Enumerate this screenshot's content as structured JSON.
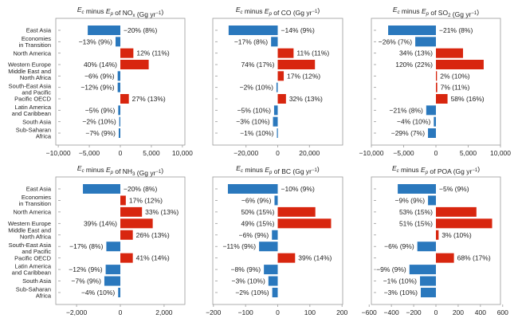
{
  "colors": {
    "negative": "#2a78bd",
    "positive": "#d8260f",
    "axis": "#999999"
  },
  "chart_data": [
    {
      "type": "bar",
      "orientation": "horizontal",
      "title": {
        "e": "E",
        "sub1": "c",
        "minus": " minus ",
        "e2": "E",
        "sub2": "p",
        "of": " of NO",
        "species_sub": "x",
        "unit": " (Gg yr",
        "exp": "−1",
        "close": ")"
      },
      "categories": [
        "East Asia",
        "Economies\nin Transition",
        "North America",
        "Western Europe",
        "Middle East and\nNorth Africa",
        "South-East Asia\nand Pacific",
        "Pacific OECD",
        "Latin America\nand Caribbean",
        "South Asia",
        "Sub-Saharan\nAfrica"
      ],
      "values": [
        -5250,
        -770,
        2100,
        4570,
        -430,
        -430,
        1370,
        -340,
        -170,
        -260
      ],
      "labels": [
        "−20% (8%)",
        "−13% (9%)",
        "12% (11%)",
        "40% (14%)",
        "−6% (9%)",
        "−12% (9%)",
        "27% (13%)",
        "−5% (9%)",
        "−2% (10%)",
        "−7% (9%)"
      ],
      "xlim": [
        -10400,
        10400
      ],
      "ticks": [
        -10000,
        -5000,
        0,
        5000,
        10000
      ],
      "tick_labels": [
        "−10,000",
        "−5,000",
        "0",
        "5,000",
        "10,000"
      ],
      "show_categories": true
    },
    {
      "type": "bar",
      "orientation": "horizontal",
      "title": {
        "e": "E",
        "sub1": "c",
        "minus": " minus ",
        "e2": "E",
        "sub2": "p",
        "of": " of CO",
        "species_sub": "",
        "unit": " (Gg yr",
        "exp": "−1",
        "close": ")"
      },
      "values": [
        -31000,
        -4200,
        10000,
        23500,
        3800,
        -800,
        5200,
        -2300,
        -3000,
        -500
      ],
      "labels": [
        "−14% (9%)",
        "−17% (8%)",
        "11% (11%)",
        "74% (17%)",
        "17% (12%)",
        "−2% (10%)",
        "32% (13%)",
        "−5% (10%)",
        "−3% (10%)",
        "−1% (10%)"
      ],
      "xlim": [
        -41000,
        41000
      ],
      "ticks": [
        -20000,
        0,
        20000
      ],
      "tick_labels": [
        "−20,000",
        "0",
        "20,000"
      ],
      "show_categories": false
    },
    {
      "type": "bar",
      "orientation": "horizontal",
      "title": {
        "e": "E",
        "sub1": "c",
        "minus": " minus ",
        "e2": "E",
        "sub2": "p",
        "of": " of SO",
        "species_sub": "2",
        "unit": " (Gg yr",
        "exp": "−1",
        "close": ")"
      },
      "values": [
        -7400,
        -3200,
        4200,
        7400,
        160,
        200,
        1800,
        -1500,
        -330,
        -1230
      ],
      "labels": [
        "−21% (8%)",
        "−26% (7%)",
        "34% (13%)",
        "120% (22%)",
        "2% (10%)",
        "7% (11%)",
        "58% (16%)",
        "−21% (8%)",
        "−4% (10%)",
        "−29% (7%)"
      ],
      "xlim": [
        -10000,
        10000
      ],
      "ticks": [
        -10000,
        -5000,
        0,
        5000,
        10000
      ],
      "tick_labels": [
        "−10,000",
        "−5,000",
        "0",
        "5,000",
        "10,000"
      ],
      "show_categories": false
    },
    {
      "type": "bar",
      "orientation": "horizontal",
      "title": {
        "e": "E",
        "sub1": "c",
        "minus": " minus ",
        "e2": "E",
        "sub2": "p",
        "of": " of NH",
        "species_sub": "3",
        "unit": " (Gg yr",
        "exp": "−1",
        "close": ")"
      },
      "values": [
        -1710,
        250,
        990,
        1480,
        570,
        -640,
        570,
        -670,
        -730,
        -100
      ],
      "labels": [
        "−20% (8%)",
        "17% (12%)",
        "33% (13%)",
        "39% (14%)",
        "26% (13%)",
        "−17% (8%)",
        "41% (14%)",
        "−12% (9%)",
        "−7% (9%)",
        "−4% (10%)"
      ],
      "xlim": [
        -2950,
        2950
      ],
      "ticks": [
        -2000,
        0,
        2000
      ],
      "tick_labels": [
        "−2,000",
        "0",
        "2,000"
      ],
      "show_categories": true
    },
    {
      "type": "bar",
      "orientation": "horizontal",
      "title": {
        "e": "E",
        "sub1": "c",
        "minus": " minus ",
        "e2": "E",
        "sub2": "p",
        "of": " of BC",
        "species_sub": "",
        "unit": " (Gg yr",
        "exp": "−1",
        "close": ")"
      },
      "values": [
        -155,
        -10,
        117,
        166,
        -18,
        -58,
        54,
        -43,
        -29,
        -17
      ],
      "labels": [
        "−10% (9%)",
        "−6% (9%)",
        "50% (15%)",
        "49% (15%)",
        "−6% (9%)",
        "−11% (9%)",
        "39% (14%)",
        "−8% (9%)",
        "−3% (10%)",
        "−2% (10%)"
      ],
      "xlim": [
        -202,
        202
      ],
      "ticks": [
        -200,
        -100,
        0,
        100,
        200
      ],
      "tick_labels": [
        "−200",
        "−100",
        "0",
        "100",
        "200"
      ],
      "show_categories": false
    },
    {
      "type": "bar",
      "orientation": "horizontal",
      "title": {
        "e": "E",
        "sub1": "c",
        "minus": " minus ",
        "e2": "E",
        "sub2": "p",
        "of": " of POA",
        "species_sub": "",
        "unit": " (Gg yr",
        "exp": "−1",
        "close": ")"
      },
      "values": [
        -343,
        -71,
        364,
        505,
        24,
        -167,
        162,
        -238,
        -143,
        -136
      ],
      "labels": [
        "−5% (9%)",
        "−9% (9%)",
        "53% (15%)",
        "51% (15%)",
        "3% (10%)",
        "−6% (9%)",
        "68% (17%)",
        "−9% (9%)",
        "−1% (10%)",
        "−3% (10%)"
      ],
      "xlim": [
        -580,
        580
      ],
      "ticks": [
        -600,
        -400,
        -200,
        0,
        200,
        400,
        600
      ],
      "tick_labels": [
        "−600",
        "−400",
        "−200",
        "0",
        "200",
        "400",
        "600"
      ],
      "show_categories": false
    }
  ]
}
